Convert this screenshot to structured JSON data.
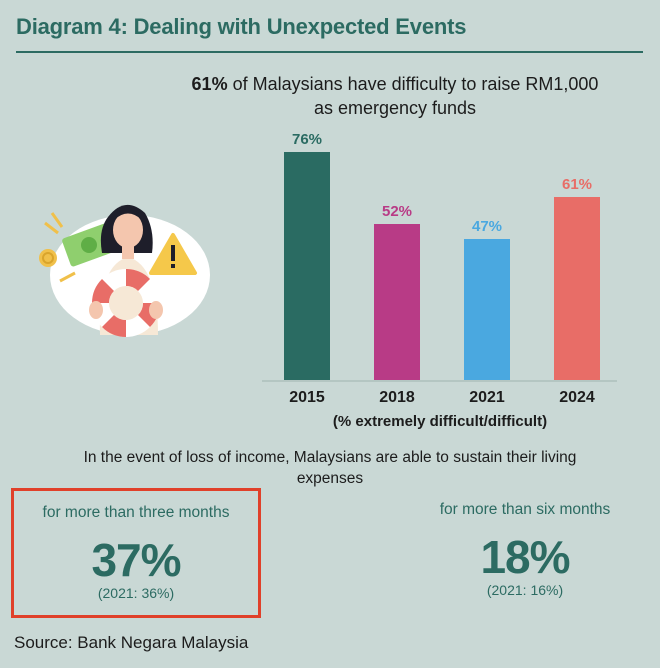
{
  "title": "Diagram 4: Dealing with Unexpected Events",
  "headline": {
    "bold": "61%",
    "rest": " of Malaysians have difficulty to raise RM1,000 as emergency funds"
  },
  "chart_data": {
    "type": "bar",
    "categories": [
      "2015",
      "2018",
      "2021",
      "2024"
    ],
    "values": [
      76,
      52,
      47,
      61
    ],
    "value_labels": [
      "76%",
      "52%",
      "47%",
      "61%"
    ],
    "colors": [
      "#2a6b62",
      "#b83b86",
      "#4aa8e0",
      "#e86d67"
    ],
    "xlabel": "(% extremely difficult/difficult)",
    "ylim": [
      0,
      80
    ],
    "grid": false,
    "legend": "none"
  },
  "sustain_text": "In the event of loss of income, Malaysians are able to sustain their living expenses",
  "stats": [
    {
      "label": "for more than three months",
      "value": "37%",
      "prev": "(2021: 36%)"
    },
    {
      "label": "for more than six months",
      "value": "18%",
      "prev": "(2021: 16%)"
    }
  ],
  "source": "Source: Bank Negara Malaysia",
  "colors": {
    "background": "#c9d8d5",
    "accent": "#2c6b62",
    "highlight_border": "#e0402a"
  }
}
